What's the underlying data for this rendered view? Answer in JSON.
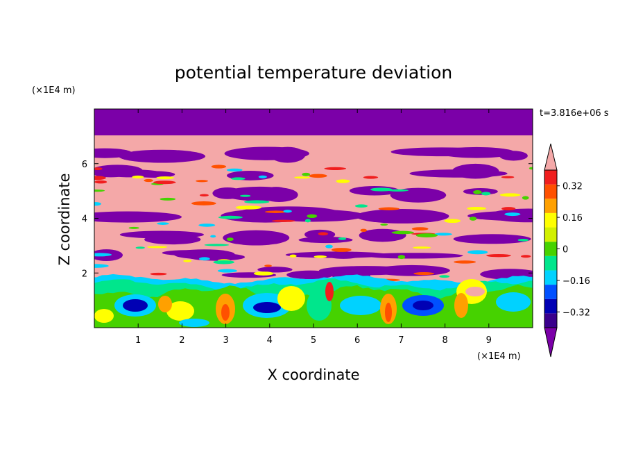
{
  "chart_data": {
    "type": "heatmap",
    "title": "potential temperature deviation",
    "xlabel": "X coordinate",
    "ylabel": "Z coordinate",
    "x_unit_label": "(×1E4 m)",
    "y_unit_label": "(×1E4 m)",
    "time_label": "t=3.816e+06 s",
    "xlim": [
      0,
      10
    ],
    "ylim": [
      0,
      8
    ],
    "x_ticks": [
      1,
      2,
      3,
      4,
      5,
      6,
      7,
      8,
      9
    ],
    "y_ticks": [
      2,
      4,
      6
    ],
    "colorbar": {
      "levels": [
        -0.4,
        -0.32,
        -0.24,
        -0.16,
        -0.08,
        0,
        0.08,
        0.16,
        0.24,
        0.32,
        0.4
      ],
      "tick_labels": [
        "0.32",
        "0.16",
        "0",
        "−0.16",
        "−0.32"
      ],
      "tick_values": [
        0.32,
        0.16,
        0,
        -0.16,
        -0.32
      ],
      "under_color": "#7b00a8",
      "over_color": "#f4a8a8",
      "colors": [
        "#3a008c",
        "#0000b4",
        "#0050ff",
        "#00d2ff",
        "#00e68c",
        "#46d200",
        "#d2f000",
        "#ffff00",
        "#ffa000",
        "#ff5000",
        "#f01e1e"
      ]
    },
    "grid": false,
    "legend_placement": "right"
  }
}
